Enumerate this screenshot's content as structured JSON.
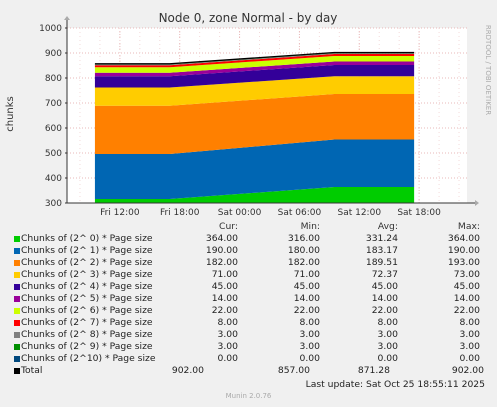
{
  "chart_data": {
    "type": "area",
    "title": "Node 0, zone Normal - by day",
    "ylabel": "chunks",
    "side_label": "RRDTOOL / TOBI OETIKER",
    "ylim": [
      300,
      1000
    ],
    "yticks": [
      300,
      400,
      500,
      600,
      700,
      800,
      900,
      1000
    ],
    "x_ticks": [
      "Fri 12:00",
      "Fri 18:00",
      "Sat 00:00",
      "Sat 06:00",
      "Sat 12:00",
      "Sat 18:00"
    ],
    "x_times_hours": [
      9.5,
      17.0,
      33.5,
      41.5
    ],
    "stack_order": [
      0,
      1,
      2,
      3,
      4,
      5,
      6,
      7,
      8,
      9,
      10
    ],
    "series": [
      {
        "name": "Chunks of (2^ 0) * Page size",
        "color": "#00cc00",
        "values": [
          316,
          316,
          364,
          364
        ]
      },
      {
        "name": "Chunks of (2^ 1) * Page size",
        "color": "#0066b3",
        "values": [
          180,
          180,
          190,
          190
        ]
      },
      {
        "name": "Chunks of (2^ 2) * Page size",
        "color": "#ff8000",
        "values": [
          193,
          193,
          182,
          182
        ]
      },
      {
        "name": "Chunks of (2^ 3) * Page size",
        "color": "#ffcc00",
        "values": [
          73,
          73,
          71,
          71
        ]
      },
      {
        "name": "Chunks of (2^ 4) * Page size",
        "color": "#330099",
        "values": [
          45,
          45,
          45,
          45
        ]
      },
      {
        "name": "Chunks of (2^ 5) * Page size",
        "color": "#990099",
        "values": [
          14,
          14,
          14,
          14
        ]
      },
      {
        "name": "Chunks of (2^ 6) * Page size",
        "color": "#ccff00",
        "values": [
          22,
          22,
          22,
          22
        ]
      },
      {
        "name": "Chunks of (2^ 7) * Page size",
        "color": "#ff0000",
        "values": [
          8,
          8,
          8,
          8
        ]
      },
      {
        "name": "Chunks of (2^ 8) * Page size",
        "color": "#808080",
        "values": [
          3,
          3,
          3,
          3
        ]
      },
      {
        "name": "Chunks of (2^ 9) * Page size",
        "color": "#008f00",
        "values": [
          3,
          3,
          3,
          3
        ]
      },
      {
        "name": "Chunks of (2^10) * Page size",
        "color": "#00487d",
        "values": [
          0,
          0,
          0,
          0
        ]
      }
    ]
  },
  "legend": {
    "headers": [
      "Cur:",
      "Min:",
      "Avg:",
      "Max:"
    ],
    "rows": [
      {
        "name": "Chunks of (2^ 0) * Page size",
        "color": "#00cc00",
        "cur": "364.00",
        "min": "316.00",
        "avg": "331.24",
        "max": "364.00"
      },
      {
        "name": "Chunks of (2^ 1) * Page size",
        "color": "#0066b3",
        "cur": "190.00",
        "min": "180.00",
        "avg": "183.17",
        "max": "190.00"
      },
      {
        "name": "Chunks of (2^ 2) * Page size",
        "color": "#ff8000",
        "cur": "182.00",
        "min": "182.00",
        "avg": "189.51",
        "max": "193.00"
      },
      {
        "name": "Chunks of (2^ 3) * Page size",
        "color": "#ffcc00",
        "cur": "71.00",
        "min": "71.00",
        "avg": "72.37",
        "max": "73.00"
      },
      {
        "name": "Chunks of (2^ 4) * Page size",
        "color": "#330099",
        "cur": "45.00",
        "min": "45.00",
        "avg": "45.00",
        "max": "45.00"
      },
      {
        "name": "Chunks of (2^ 5) * Page size",
        "color": "#990099",
        "cur": "14.00",
        "min": "14.00",
        "avg": "14.00",
        "max": "14.00"
      },
      {
        "name": "Chunks of (2^ 6) * Page size",
        "color": "#ccff00",
        "cur": "22.00",
        "min": "22.00",
        "avg": "22.00",
        "max": "22.00"
      },
      {
        "name": "Chunks of (2^ 7) * Page size",
        "color": "#ff0000",
        "cur": "8.00",
        "min": "8.00",
        "avg": "8.00",
        "max": "8.00"
      },
      {
        "name": "Chunks of (2^ 8) * Page size",
        "color": "#808080",
        "cur": "3.00",
        "min": "3.00",
        "avg": "3.00",
        "max": "3.00"
      },
      {
        "name": "Chunks of (2^ 9) * Page size",
        "color": "#008f00",
        "cur": "3.00",
        "min": "3.00",
        "avg": "3.00",
        "max": "3.00"
      },
      {
        "name": "Chunks of (2^10) * Page size",
        "color": "#00487d",
        "cur": "0.00",
        "min": "0.00",
        "avg": "0.00",
        "max": "0.00"
      }
    ],
    "total": {
      "name": "Total",
      "color": "#000000",
      "cur": "902.00",
      "min": "857.00",
      "avg": "871.28",
      "max": "902.00"
    }
  },
  "last_update": "Last update: Sat Oct 25 18:55:11 2025",
  "footer": "Munin 2.0.76"
}
